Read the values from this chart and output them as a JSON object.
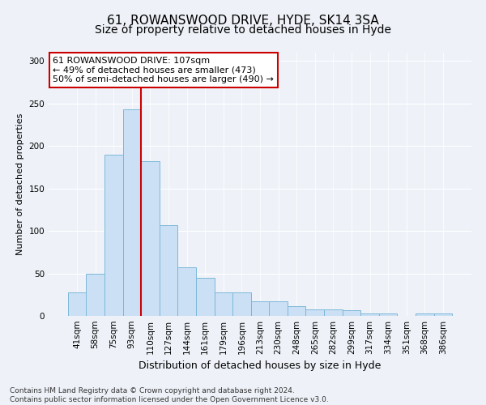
{
  "title": "61, ROWANSWOOD DRIVE, HYDE, SK14 3SA",
  "subtitle": "Size of property relative to detached houses in Hyde",
  "xlabel": "Distribution of detached houses by size in Hyde",
  "ylabel": "Number of detached properties",
  "categories": [
    "41sqm",
    "58sqm",
    "75sqm",
    "93sqm",
    "110sqm",
    "127sqm",
    "144sqm",
    "161sqm",
    "179sqm",
    "196sqm",
    "213sqm",
    "230sqm",
    "248sqm",
    "265sqm",
    "282sqm",
    "299sqm",
    "317sqm",
    "334sqm",
    "351sqm",
    "368sqm",
    "386sqm"
  ],
  "values": [
    28,
    50,
    190,
    243,
    182,
    107,
    57,
    45,
    28,
    28,
    17,
    17,
    11,
    8,
    8,
    7,
    3,
    3,
    0,
    3,
    3
  ],
  "bar_color": "#cce0f5",
  "bar_edge_color": "#7ab8d8",
  "vline_x_index": 4,
  "vline_color": "#cc0000",
  "annotation_text": "61 ROWANSWOOD DRIVE: 107sqm\n← 49% of detached houses are smaller (473)\n50% of semi-detached houses are larger (490) →",
  "annotation_box_color": "white",
  "annotation_box_edge": "#cc0000",
  "ylim": [
    0,
    310
  ],
  "yticks": [
    0,
    50,
    100,
    150,
    200,
    250,
    300
  ],
  "footer": "Contains HM Land Registry data © Crown copyright and database right 2024.\nContains public sector information licensed under the Open Government Licence v3.0.",
  "background_color": "#eef2f8",
  "title_fontsize": 11,
  "subtitle_fontsize": 10,
  "xlabel_fontsize": 9,
  "ylabel_fontsize": 8,
  "tick_fontsize": 7.5,
  "annotation_fontsize": 8,
  "footer_fontsize": 6.5
}
